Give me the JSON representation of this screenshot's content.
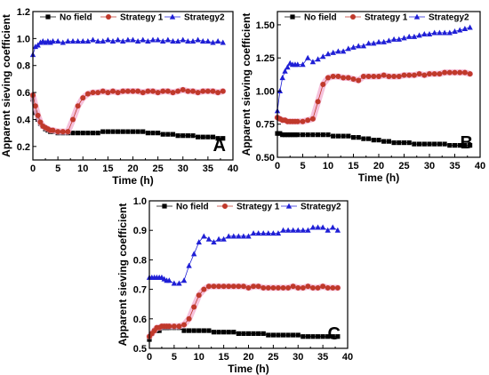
{
  "chart_data": [
    {
      "panel": "A",
      "type": "line",
      "xlabel": "Time (h)",
      "ylabel": "Apparent sieving coefficient",
      "xlim": [
        0,
        40
      ],
      "ylim": [
        0.1,
        1.2
      ],
      "xticks": [
        "0",
        "5",
        "10",
        "15",
        "20",
        "25",
        "30",
        "35",
        "40"
      ],
      "yticks": [
        "0.2",
        "0.4",
        "0.6",
        "0.8",
        "1.0",
        "1.2"
      ],
      "legend_position": "top",
      "grid": false,
      "series": [
        {
          "name": "No field",
          "marker": "square",
          "color": "#000000",
          "x": [
            0,
            0.5,
            1,
            1.5,
            2,
            2.5,
            3,
            3.5,
            4,
            5,
            6,
            7,
            8,
            9,
            10,
            11,
            12,
            13,
            14,
            15,
            16,
            17,
            18,
            19,
            20,
            21,
            22,
            23,
            24,
            25,
            26,
            27,
            28,
            29,
            30,
            31,
            32,
            33,
            34,
            35,
            36,
            37,
            38
          ],
          "y": [
            0.55,
            0.45,
            0.4,
            0.37,
            0.35,
            0.33,
            0.32,
            0.31,
            0.31,
            0.3,
            0.3,
            0.3,
            0.3,
            0.3,
            0.3,
            0.3,
            0.3,
            0.3,
            0.31,
            0.31,
            0.31,
            0.31,
            0.31,
            0.31,
            0.31,
            0.31,
            0.31,
            0.3,
            0.3,
            0.3,
            0.29,
            0.29,
            0.29,
            0.28,
            0.28,
            0.28,
            0.28,
            0.27,
            0.27,
            0.27,
            0.27,
            0.26,
            0.26
          ]
        },
        {
          "name": "Strategy 1",
          "marker": "circle",
          "color": "#c0392b",
          "x": [
            0,
            0.5,
            1,
            1.5,
            2,
            2.5,
            3,
            3.5,
            4,
            5,
            6,
            7,
            8,
            9,
            10,
            11,
            12,
            13,
            14,
            15,
            16,
            17,
            18,
            19,
            20,
            21,
            22,
            23,
            24,
            25,
            26,
            27,
            28,
            29,
            30,
            31,
            32,
            33,
            34,
            35,
            36,
            37,
            38
          ],
          "y": [
            0.58,
            0.5,
            0.43,
            0.38,
            0.35,
            0.34,
            0.33,
            0.32,
            0.32,
            0.31,
            0.31,
            0.31,
            0.4,
            0.5,
            0.56,
            0.59,
            0.6,
            0.6,
            0.61,
            0.6,
            0.61,
            0.6,
            0.61,
            0.61,
            0.61,
            0.61,
            0.6,
            0.61,
            0.61,
            0.6,
            0.61,
            0.61,
            0.6,
            0.61,
            0.62,
            0.61,
            0.61,
            0.6,
            0.61,
            0.61,
            0.61,
            0.6,
            0.61
          ]
        },
        {
          "name": "Strategy2",
          "marker": "triangle",
          "color": "#1f1fd6",
          "x": [
            0,
            0.5,
            1,
            1.5,
            2,
            2.5,
            3,
            3.5,
            4,
            5,
            6,
            7,
            8,
            9,
            10,
            11,
            12,
            13,
            14,
            15,
            16,
            17,
            18,
            19,
            20,
            21,
            22,
            23,
            24,
            25,
            26,
            27,
            28,
            29,
            30,
            31,
            32,
            33,
            34,
            35,
            36,
            37,
            38
          ],
          "y": [
            0.88,
            0.94,
            0.95,
            0.97,
            0.98,
            0.97,
            0.98,
            0.97,
            0.98,
            0.98,
            0.97,
            0.98,
            0.98,
            0.98,
            0.98,
            0.98,
            0.99,
            0.98,
            0.98,
            0.99,
            0.98,
            0.99,
            0.98,
            0.99,
            0.99,
            0.98,
            0.99,
            0.98,
            0.99,
            0.99,
            0.98,
            0.99,
            0.98,
            0.98,
            0.99,
            0.98,
            0.98,
            0.99,
            0.98,
            0.98,
            0.97,
            0.98,
            0.97
          ]
        }
      ]
    },
    {
      "panel": "B",
      "type": "line",
      "xlabel": "Time (h)",
      "ylabel": "Apparent sieving coefficient",
      "xlim": [
        0,
        40
      ],
      "ylim": [
        0.5,
        1.6
      ],
      "xticks": [
        "0",
        "5",
        "10",
        "15",
        "20",
        "25",
        "30",
        "35",
        "40"
      ],
      "yticks": [
        "0.50",
        "0.75",
        "1.00",
        "1.25",
        "1.50"
      ],
      "legend_position": "top",
      "grid": false,
      "series": [
        {
          "name": "No field",
          "marker": "square",
          "color": "#000000",
          "x": [
            0,
            0.5,
            1,
            1.5,
            2,
            2.5,
            3,
            3.5,
            4,
            5,
            6,
            7,
            8,
            9,
            10,
            11,
            12,
            13,
            14,
            15,
            16,
            17,
            18,
            19,
            20,
            21,
            22,
            23,
            24,
            25,
            26,
            27,
            28,
            29,
            30,
            31,
            32,
            33,
            34,
            35,
            36,
            37,
            38
          ],
          "y": [
            0.68,
            0.68,
            0.67,
            0.67,
            0.67,
            0.67,
            0.67,
            0.67,
            0.67,
            0.67,
            0.67,
            0.67,
            0.67,
            0.67,
            0.67,
            0.66,
            0.66,
            0.66,
            0.66,
            0.65,
            0.65,
            0.64,
            0.64,
            0.63,
            0.63,
            0.62,
            0.62,
            0.61,
            0.61,
            0.61,
            0.61,
            0.6,
            0.6,
            0.6,
            0.6,
            0.6,
            0.6,
            0.6,
            0.59,
            0.59,
            0.59,
            0.59,
            0.59
          ]
        },
        {
          "name": "Strategy 1",
          "marker": "circle",
          "color": "#c0392b",
          "x": [
            0,
            0.5,
            1,
            1.5,
            2,
            2.5,
            3,
            3.5,
            4,
            5,
            6,
            7,
            8,
            9,
            10,
            11,
            12,
            13,
            14,
            15,
            16,
            17,
            18,
            19,
            20,
            21,
            22,
            23,
            24,
            25,
            26,
            27,
            28,
            29,
            30,
            31,
            32,
            33,
            34,
            35,
            36,
            37,
            38
          ],
          "y": [
            0.8,
            0.79,
            0.78,
            0.78,
            0.77,
            0.77,
            0.77,
            0.77,
            0.77,
            0.77,
            0.78,
            0.79,
            0.92,
            1.05,
            1.1,
            1.11,
            1.11,
            1.1,
            1.1,
            1.09,
            1.08,
            1.11,
            1.11,
            1.11,
            1.11,
            1.12,
            1.11,
            1.11,
            1.11,
            1.12,
            1.12,
            1.12,
            1.13,
            1.12,
            1.13,
            1.13,
            1.13,
            1.14,
            1.14,
            1.14,
            1.14,
            1.14,
            1.13
          ]
        },
        {
          "name": "Strategy2",
          "marker": "triangle",
          "color": "#1f1fd6",
          "x": [
            0,
            0.5,
            1,
            1.5,
            2,
            2.5,
            3,
            3.5,
            4,
            5,
            6,
            7,
            8,
            9,
            10,
            11,
            12,
            13,
            14,
            15,
            16,
            17,
            18,
            19,
            20,
            21,
            22,
            23,
            24,
            25,
            26,
            27,
            28,
            29,
            30,
            31,
            32,
            33,
            34,
            35,
            36,
            37,
            38
          ],
          "y": [
            0.85,
            1.0,
            1.1,
            1.15,
            1.18,
            1.21,
            1.2,
            1.2,
            1.2,
            1.2,
            1.25,
            1.22,
            1.24,
            1.26,
            1.28,
            1.29,
            1.3,
            1.3,
            1.32,
            1.33,
            1.34,
            1.34,
            1.36,
            1.36,
            1.37,
            1.37,
            1.38,
            1.39,
            1.39,
            1.4,
            1.41,
            1.41,
            1.42,
            1.43,
            1.43,
            1.44,
            1.44,
            1.44,
            1.44,
            1.45,
            1.46,
            1.47,
            1.48
          ]
        }
      ]
    },
    {
      "panel": "C",
      "type": "line",
      "xlabel": "Time (h)",
      "ylabel": "Apparent sieving coefficient",
      "xlim": [
        0,
        40
      ],
      "ylim": [
        0.5,
        1.0
      ],
      "xticks": [
        "0",
        "5",
        "10",
        "15",
        "20",
        "25",
        "30",
        "35",
        "40"
      ],
      "yticks": [
        "0.5",
        "0.6",
        "0.7",
        "0.8",
        "0.9",
        "1.0"
      ],
      "legend_position": "top",
      "grid": false,
      "series": [
        {
          "name": "No field",
          "marker": "square",
          "color": "#000000",
          "x": [
            0,
            0.5,
            1,
            1.5,
            2,
            2.5,
            3,
            3.5,
            4,
            5,
            6,
            7,
            8,
            9,
            10,
            11,
            12,
            13,
            14,
            15,
            16,
            17,
            18,
            19,
            20,
            21,
            22,
            23,
            24,
            25,
            26,
            27,
            28,
            29,
            30,
            31,
            32,
            33,
            34,
            35,
            36,
            37,
            38
          ],
          "y": [
            0.53,
            0.55,
            0.56,
            0.56,
            0.56,
            0.57,
            0.57,
            0.57,
            0.57,
            0.57,
            0.57,
            0.56,
            0.56,
            0.56,
            0.56,
            0.56,
            0.56,
            0.555,
            0.555,
            0.555,
            0.555,
            0.555,
            0.55,
            0.55,
            0.55,
            0.55,
            0.55,
            0.55,
            0.545,
            0.545,
            0.545,
            0.545,
            0.545,
            0.545,
            0.545,
            0.54,
            0.54,
            0.54,
            0.54,
            0.54,
            0.54,
            0.54,
            0.54
          ]
        },
        {
          "name": "Strategy 1",
          "marker": "circle",
          "color": "#c0392b",
          "x": [
            0,
            0.5,
            1,
            1.5,
            2,
            2.5,
            3,
            3.5,
            4,
            5,
            6,
            7,
            8,
            9,
            10,
            11,
            12,
            13,
            14,
            15,
            16,
            17,
            18,
            19,
            20,
            21,
            22,
            23,
            24,
            25,
            26,
            27,
            28,
            29,
            30,
            31,
            32,
            33,
            34,
            35,
            36,
            37,
            38
          ],
          "y": [
            0.54,
            0.55,
            0.56,
            0.57,
            0.57,
            0.575,
            0.575,
            0.575,
            0.575,
            0.575,
            0.575,
            0.58,
            0.6,
            0.64,
            0.68,
            0.7,
            0.71,
            0.71,
            0.71,
            0.71,
            0.71,
            0.71,
            0.71,
            0.71,
            0.705,
            0.71,
            0.71,
            0.705,
            0.705,
            0.705,
            0.705,
            0.705,
            0.705,
            0.71,
            0.705,
            0.705,
            0.71,
            0.705,
            0.705,
            0.71,
            0.705,
            0.705,
            0.705
          ]
        },
        {
          "name": "Strategy2",
          "marker": "triangle",
          "color": "#1f1fd6",
          "x": [
            0,
            0.5,
            1,
            1.5,
            2,
            2.5,
            3,
            3.5,
            4,
            5,
            6,
            7,
            8,
            9,
            10,
            11,
            12,
            13,
            14,
            15,
            16,
            17,
            18,
            19,
            20,
            21,
            22,
            23,
            24,
            25,
            26,
            27,
            28,
            29,
            30,
            31,
            32,
            33,
            34,
            35,
            36,
            37,
            38
          ],
          "y": [
            0.74,
            0.74,
            0.74,
            0.74,
            0.74,
            0.74,
            0.735,
            0.73,
            0.73,
            0.72,
            0.72,
            0.73,
            0.78,
            0.82,
            0.86,
            0.88,
            0.87,
            0.86,
            0.87,
            0.87,
            0.88,
            0.88,
            0.88,
            0.88,
            0.88,
            0.89,
            0.89,
            0.89,
            0.89,
            0.89,
            0.89,
            0.9,
            0.9,
            0.9,
            0.9,
            0.9,
            0.9,
            0.91,
            0.91,
            0.91,
            0.9,
            0.91,
            0.9
          ]
        }
      ]
    }
  ]
}
